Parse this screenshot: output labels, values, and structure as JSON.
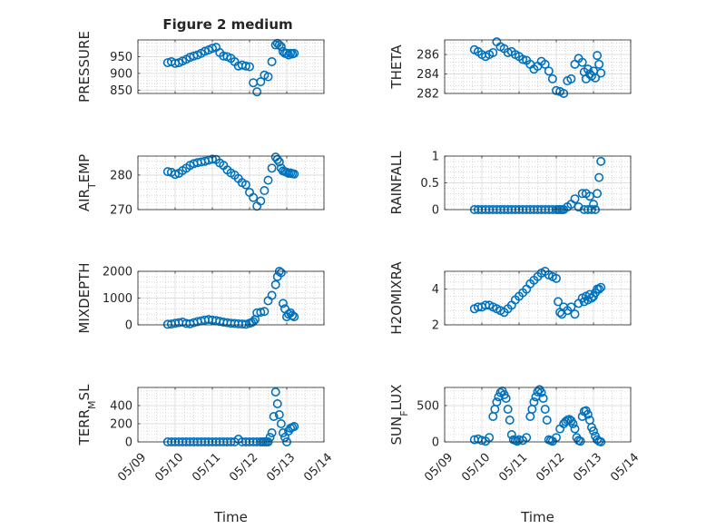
{
  "title": "Figure 2 medium",
  "colors": {
    "marker": "#0072BD",
    "axis": "#262626"
  },
  "chart_data": [
    {
      "type": "scatter",
      "ylabel": "PRESSURE",
      "xlabel": "",
      "xlim": [
        0,
        5
      ],
      "ylim": [
        840,
        1000
      ],
      "yticks": [
        850,
        900,
        950
      ],
      "xtick_labels": [],
      "x": [
        0.8,
        0.9,
        1.0,
        1.1,
        1.2,
        1.3,
        1.4,
        1.5,
        1.6,
        1.7,
        1.8,
        1.9,
        2.0,
        2.1,
        2.2,
        2.3,
        2.4,
        2.5,
        2.6,
        2.7,
        2.8,
        2.9,
        3.0,
        3.1,
        3.2,
        3.3,
        3.4,
        3.5,
        3.6,
        3.7,
        3.75,
        3.8,
        3.85,
        3.9,
        3.95,
        4.0,
        4.05,
        4.1,
        4.15,
        4.2
      ],
      "y": [
        932,
        935,
        930,
        932,
        937,
        942,
        948,
        952,
        955,
        960,
        966,
        970,
        975,
        978,
        962,
        952,
        950,
        945,
        935,
        922,
        925,
        922,
        920,
        872,
        845,
        875,
        895,
        890,
        935,
        985,
        990,
        985,
        980,
        965,
        960,
        960,
        955,
        960,
        958,
        960
      ]
    },
    {
      "type": "scatter",
      "ylabel": "THETA",
      "xlabel": "",
      "xlim": [
        0,
        5
      ],
      "ylim": [
        282,
        287.5
      ],
      "yticks": [
        282,
        284,
        286
      ],
      "xtick_labels": [],
      "x": [
        0.8,
        0.9,
        1.0,
        1.1,
        1.2,
        1.3,
        1.4,
        1.5,
        1.6,
        1.7,
        1.8,
        1.9,
        2.0,
        2.1,
        2.2,
        2.3,
        2.4,
        2.5,
        2.6,
        2.7,
        2.8,
        2.9,
        3.0,
        3.1,
        3.2,
        3.3,
        3.4,
        3.5,
        3.6,
        3.7,
        3.75,
        3.8,
        3.85,
        3.9,
        3.95,
        4.0,
        4.05,
        4.1,
        4.15,
        4.2
      ],
      "y": [
        286.5,
        286.3,
        286.0,
        285.8,
        286.0,
        286.2,
        287.3,
        286.8,
        286.6,
        286.2,
        286.3,
        286.0,
        285.8,
        285.5,
        285.4,
        285.0,
        284.5,
        284.8,
        285.3,
        285.0,
        284.3,
        283.5,
        282.3,
        282.2,
        282.0,
        283.3,
        283.5,
        285.0,
        285.6,
        285.2,
        284.2,
        283.5,
        284.5,
        284.0,
        283.8,
        284.3,
        283.6,
        285.9,
        285.0,
        284.1
      ]
    },
    {
      "type": "scatter",
      "ylabel": "AIR_TEMP",
      "xlabel": "",
      "xlim": [
        0,
        5
      ],
      "ylim": [
        270,
        285.5
      ],
      "yticks": [
        270,
        280
      ],
      "xtick_labels": [],
      "x": [
        0.8,
        0.9,
        1.0,
        1.1,
        1.2,
        1.3,
        1.4,
        1.5,
        1.6,
        1.7,
        1.8,
        1.9,
        2.0,
        2.1,
        2.2,
        2.3,
        2.4,
        2.5,
        2.6,
        2.7,
        2.8,
        2.9,
        3.0,
        3.1,
        3.2,
        3.3,
        3.4,
        3.5,
        3.6,
        3.7,
        3.75,
        3.8,
        3.85,
        3.9,
        3.95,
        4.0,
        4.05,
        4.1,
        4.15,
        4.2
      ],
      "y": [
        281.0,
        280.8,
        280.2,
        280.5,
        281.3,
        282.0,
        282.8,
        283.3,
        283.6,
        283.8,
        284.0,
        284.3,
        284.6,
        284.5,
        283.5,
        282.8,
        281.5,
        280.6,
        280.0,
        279.0,
        277.8,
        277.2,
        275.0,
        273.5,
        271.0,
        272.5,
        275.5,
        278.5,
        282.0,
        285.2,
        284.5,
        283.8,
        282.0,
        281.2,
        281.0,
        280.8,
        280.5,
        280.6,
        280.4,
        280.3
      ]
    },
    {
      "type": "scatter",
      "ylabel": "RAINFALL",
      "xlabel": "",
      "xlim": [
        0,
        5
      ],
      "ylim": [
        0,
        1
      ],
      "yticks": [
        0,
        0.5,
        1
      ],
      "xtick_labels": [],
      "x": [
        0.8,
        0.9,
        1.0,
        1.1,
        1.2,
        1.3,
        1.4,
        1.5,
        1.6,
        1.7,
        1.8,
        1.9,
        2.0,
        2.1,
        2.2,
        2.3,
        2.4,
        2.5,
        2.6,
        2.7,
        2.8,
        2.9,
        3.0,
        3.05,
        3.1,
        3.15,
        3.2,
        3.3,
        3.4,
        3.5,
        3.6,
        3.7,
        3.75,
        3.8,
        3.85,
        3.9,
        3.95,
        4.0,
        4.05,
        4.1,
        4.15,
        4.2
      ],
      "y": [
        0,
        0,
        0,
        0,
        0,
        0,
        0,
        0,
        0,
        0,
        0,
        0,
        0,
        0,
        0,
        0,
        0,
        0,
        0,
        0,
        0,
        0,
        0,
        0,
        0,
        0,
        0,
        0.05,
        0.1,
        0.2,
        0.05,
        0.3,
        0,
        0.3,
        0,
        0.25,
        0,
        0.1,
        0,
        0.3,
        0.6,
        0.9
      ]
    },
    {
      "type": "scatter",
      "ylabel": "MIXDEPTH",
      "xlabel": "",
      "xlim": [
        0,
        5
      ],
      "ylim": [
        0,
        2000
      ],
      "yticks": [
        0,
        1000,
        2000
      ],
      "xtick_labels": [],
      "x": [
        0.8,
        0.9,
        1.0,
        1.1,
        1.2,
        1.3,
        1.4,
        1.5,
        1.6,
        1.7,
        1.8,
        1.9,
        2.0,
        2.1,
        2.2,
        2.3,
        2.4,
        2.5,
        2.6,
        2.7,
        2.8,
        2.9,
        3.0,
        3.05,
        3.1,
        3.15,
        3.2,
        3.3,
        3.4,
        3.5,
        3.6,
        3.7,
        3.75,
        3.8,
        3.85,
        3.9,
        3.95,
        4.0,
        4.05,
        4.1,
        4.15,
        4.2
      ],
      "y": [
        20,
        30,
        60,
        80,
        100,
        50,
        40,
        80,
        120,
        150,
        180,
        200,
        180,
        160,
        130,
        100,
        80,
        60,
        50,
        40,
        30,
        20,
        60,
        80,
        120,
        200,
        450,
        470,
        500,
        900,
        1100,
        1500,
        1800,
        2000,
        1950,
        800,
        600,
        300,
        400,
        450,
        350,
        300
      ]
    },
    {
      "type": "scatter",
      "ylabel": "H2OMIXRA",
      "xlabel": "",
      "xlim": [
        0,
        5
      ],
      "ylim": [
        2,
        5
      ],
      "yticks": [
        2,
        4
      ],
      "xtick_labels": [],
      "x": [
        0.8,
        0.9,
        1.0,
        1.1,
        1.2,
        1.3,
        1.4,
        1.5,
        1.6,
        1.7,
        1.8,
        1.9,
        2.0,
        2.1,
        2.2,
        2.3,
        2.4,
        2.5,
        2.6,
        2.7,
        2.8,
        2.9,
        3.0,
        3.05,
        3.1,
        3.15,
        3.2,
        3.3,
        3.4,
        3.5,
        3.6,
        3.7,
        3.75,
        3.8,
        3.85,
        3.9,
        3.95,
        4.0,
        4.05,
        4.1,
        4.15,
        4.2
      ],
      "y": [
        2.9,
        3.0,
        3.0,
        3.1,
        3.1,
        3.0,
        2.9,
        2.8,
        2.7,
        2.9,
        3.1,
        3.4,
        3.6,
        3.8,
        4.0,
        4.3,
        4.5,
        4.7,
        4.9,
        5.0,
        4.8,
        4.7,
        4.6,
        3.3,
        2.7,
        2.6,
        3.0,
        2.8,
        3.0,
        2.6,
        3.2,
        3.5,
        3.3,
        3.6,
        3.4,
        3.7,
        3.5,
        3.6,
        3.8,
        4.0,
        4.0,
        4.1
      ]
    },
    {
      "type": "scatter",
      "ylabel": "TERR_MSL",
      "xlabel": "Time",
      "xlim": [
        0,
        5
      ],
      "ylim": [
        0,
        600
      ],
      "yticks": [
        0,
        200,
        400
      ],
      "xtick_labels": [
        "05/09",
        "05/10",
        "05/11",
        "05/12",
        "05/13",
        "05/14"
      ],
      "x": [
        0.8,
        0.9,
        1.0,
        1.1,
        1.2,
        1.3,
        1.4,
        1.5,
        1.6,
        1.7,
        1.8,
        1.9,
        2.0,
        2.1,
        2.2,
        2.3,
        2.4,
        2.5,
        2.6,
        2.7,
        2.8,
        2.9,
        3.0,
        3.1,
        3.2,
        3.3,
        3.35,
        3.4,
        3.45,
        3.5,
        3.55,
        3.6,
        3.65,
        3.7,
        3.75,
        3.8,
        3.85,
        3.9,
        3.95,
        4.0,
        4.05,
        4.1,
        4.15,
        4.2
      ],
      "y": [
        0,
        0,
        0,
        0,
        0,
        0,
        0,
        0,
        0,
        0,
        0,
        0,
        0,
        0,
        0,
        0,
        0,
        0,
        0,
        30,
        0,
        0,
        0,
        0,
        0,
        0,
        0,
        0,
        0,
        0,
        50,
        100,
        280,
        550,
        420,
        300,
        200,
        100,
        50,
        0,
        120,
        150,
        160,
        170
      ]
    },
    {
      "type": "scatter",
      "ylabel": "SUN_FLUX",
      "xlabel": "Time",
      "xlim": [
        0,
        5
      ],
      "ylim": [
        0,
        750
      ],
      "yticks": [
        0,
        500
      ],
      "xtick_labels": [
        "05/09",
        "05/10",
        "05/11",
        "05/12",
        "05/13",
        "05/14"
      ],
      "x": [
        0.8,
        0.9,
        1.0,
        1.1,
        1.2,
        1.3,
        1.35,
        1.4,
        1.45,
        1.5,
        1.55,
        1.6,
        1.65,
        1.7,
        1.75,
        1.8,
        1.85,
        1.9,
        1.95,
        2.0,
        2.1,
        2.2,
        2.3,
        2.35,
        2.4,
        2.45,
        2.5,
        2.55,
        2.6,
        2.65,
        2.7,
        2.75,
        2.8,
        2.85,
        2.9,
        3.0,
        3.1,
        3.2,
        3.25,
        3.3,
        3.35,
        3.4,
        3.45,
        3.5,
        3.55,
        3.6,
        3.65,
        3.7,
        3.75,
        3.8,
        3.85,
        3.9,
        3.95,
        4.0,
        4.05,
        4.1,
        4.15,
        4.2
      ],
      "y": [
        30,
        40,
        20,
        10,
        60,
        350,
        450,
        550,
        620,
        680,
        700,
        650,
        600,
        450,
        300,
        100,
        30,
        20,
        10,
        30,
        20,
        60,
        350,
        450,
        550,
        620,
        690,
        720,
        680,
        600,
        450,
        300,
        30,
        20,
        10,
        60,
        180,
        250,
        280,
        300,
        310,
        290,
        250,
        180,
        60,
        20,
        10,
        350,
        420,
        430,
        380,
        300,
        200,
        150,
        80,
        30,
        10,
        0
      ]
    }
  ]
}
